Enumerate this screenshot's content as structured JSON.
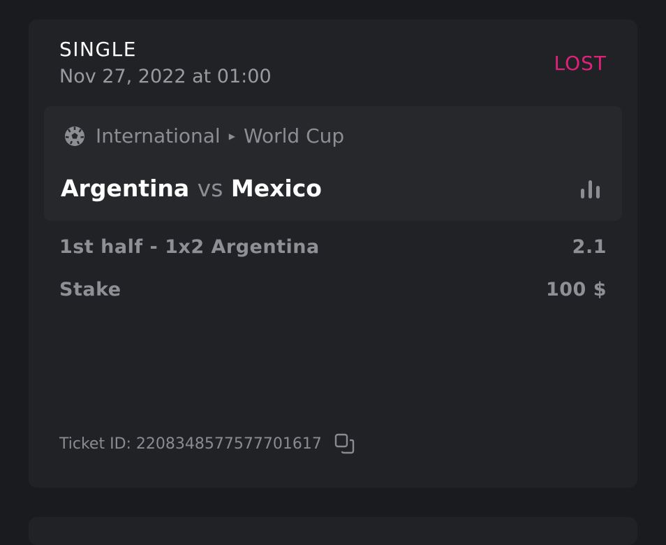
{
  "bet": {
    "type": "SINGLE",
    "date": "Nov 27, 2022 at 01:00",
    "status": "LOST",
    "status_color": "#e0217a",
    "event": {
      "sport_icon": "soccer-ball-icon",
      "category": "International",
      "league": "World Cup",
      "home": "Argentina",
      "vs": "vs",
      "away": "Mexico",
      "stats_icon": "bar-chart-icon"
    },
    "selection": {
      "label": "1st half - 1x2 Argentina",
      "odds": "2.1"
    },
    "stake": {
      "label": "Stake",
      "value": "100 $"
    },
    "ticket": {
      "label": "Ticket ID:",
      "id": "2208348577577701617",
      "copy_icon": "copy-icon"
    }
  }
}
